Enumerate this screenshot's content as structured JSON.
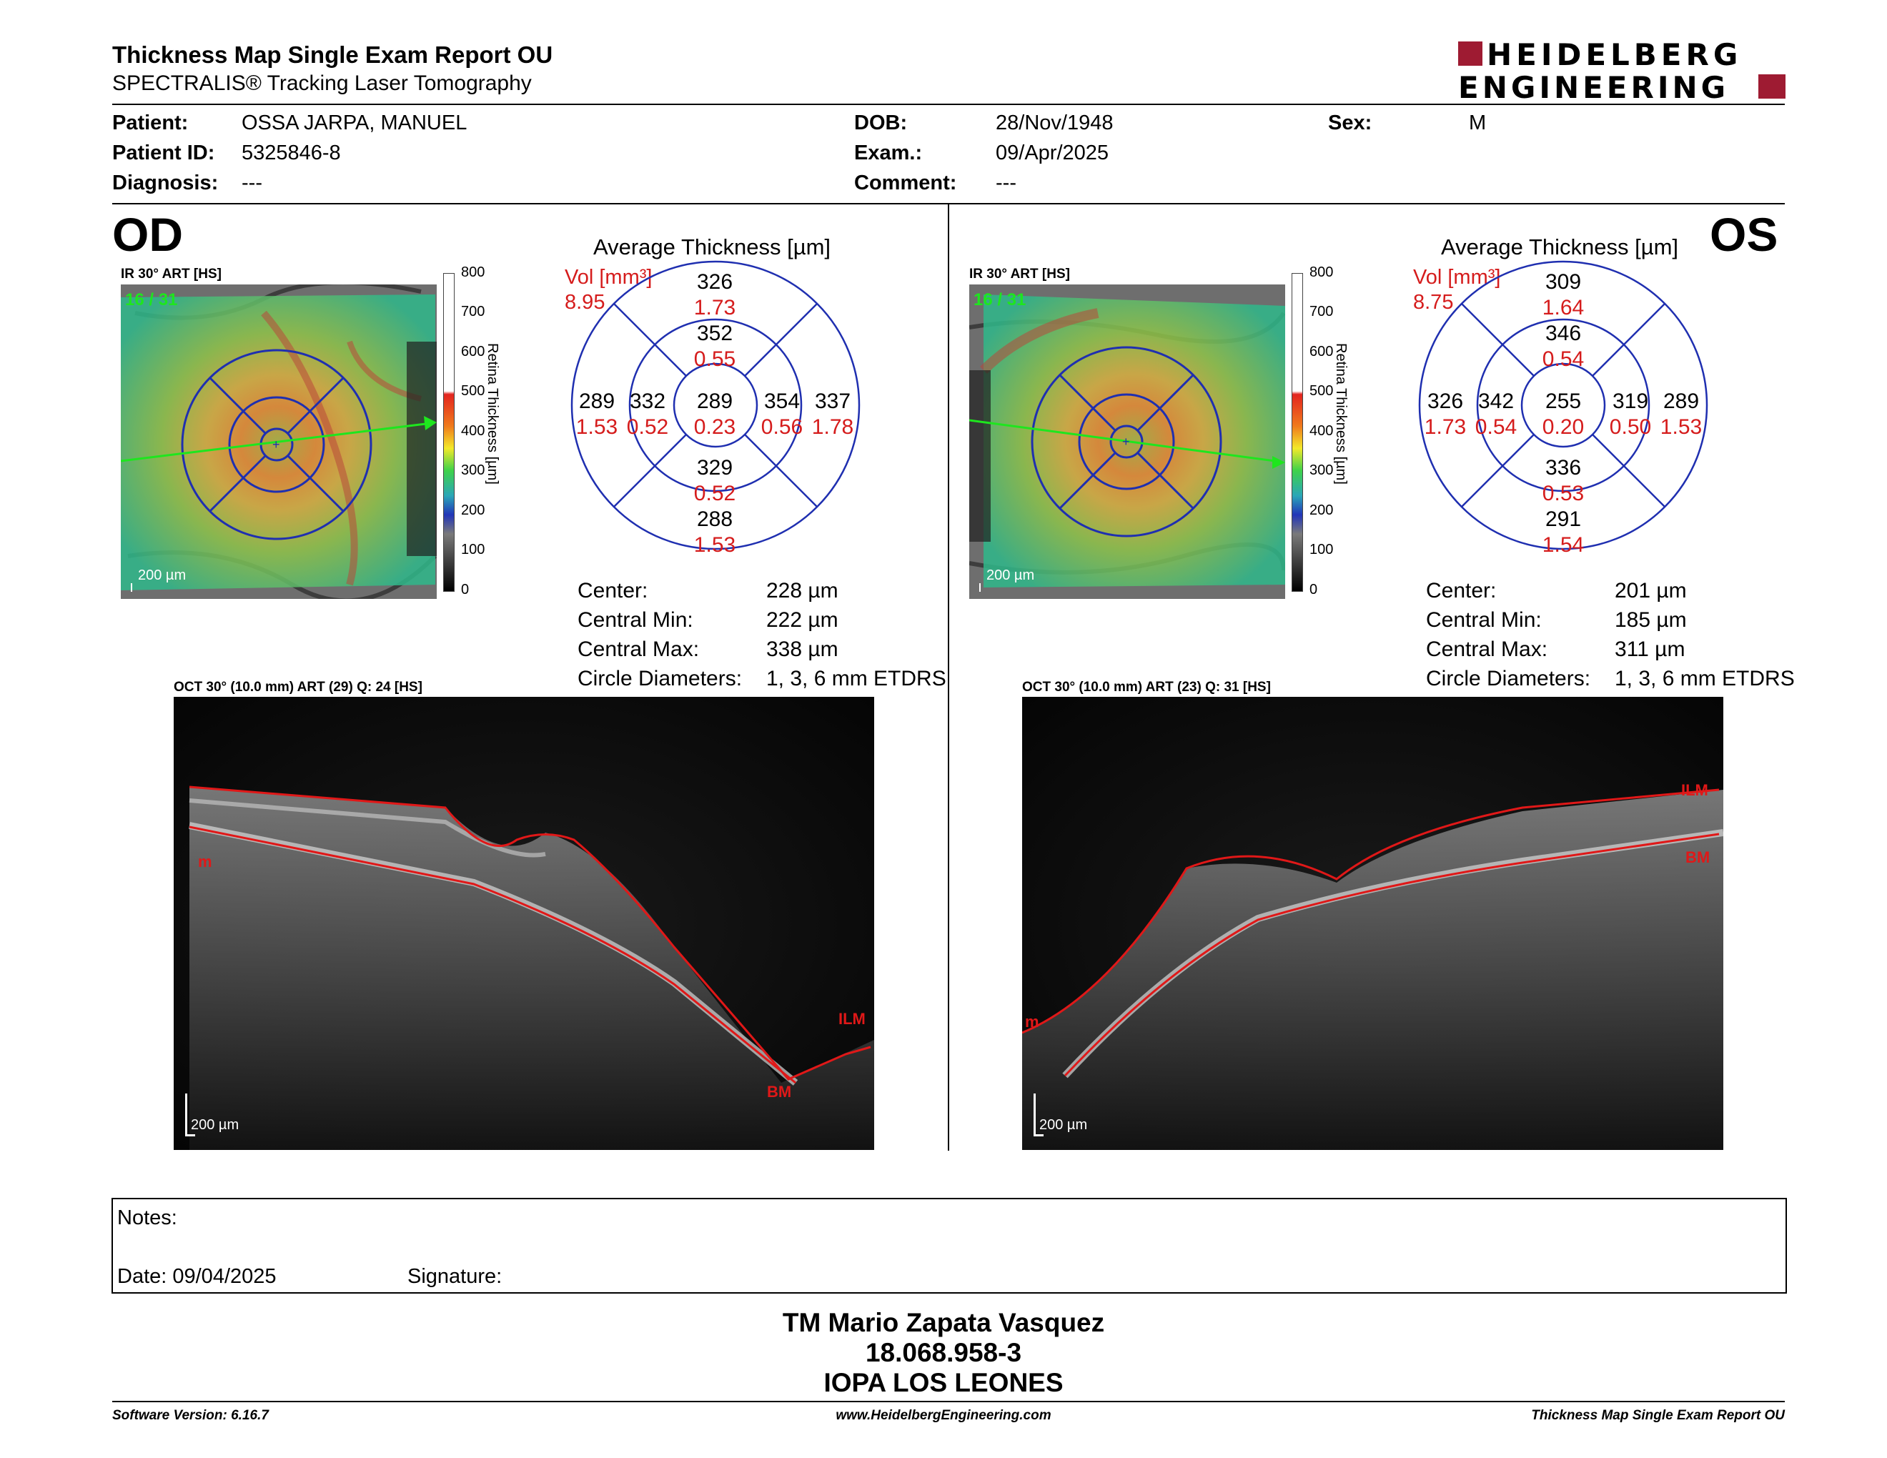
{
  "header": {
    "title": "Thickness Map Single Exam Report OU",
    "subtitle": "SPECTRALIS® Tracking Laser Tomography",
    "logo_line1": "HEIDELBERG",
    "logo_line2": "ENGINEERING"
  },
  "patient": {
    "patient_label": "Patient:",
    "patient_value": "OSSA JARPA, MANUEL",
    "id_label": "Patient ID:",
    "id_value": "5325846-8",
    "diagnosis_label": "Diagnosis:",
    "diagnosis_value": "---",
    "dob_label": "DOB:",
    "dob_value": "28/Nov/1948",
    "exam_label": "Exam.:",
    "exam_value": "09/Apr/2025",
    "comment_label": "Comment:",
    "comment_value": "---",
    "sex_label": "Sex:",
    "sex_value": "M"
  },
  "colorbar": {
    "ticks": [
      "800",
      "700",
      "600",
      "500",
      "400",
      "300",
      "200",
      "100",
      "0"
    ],
    "label": "Retina Thickness [µm]"
  },
  "od": {
    "eye": "OD",
    "ir_label": "IR 30° ART [HS]",
    "frame": "16 / 31",
    "scale": "200 µm",
    "avg_title": "Average Thickness [µm]",
    "vol_label": "Vol [mm³]",
    "vol_value": "8.95",
    "sectors": {
      "outer_top": {
        "t": "326",
        "v": "1.73"
      },
      "inner_top": {
        "t": "352",
        "v": "0.55"
      },
      "outer_left": {
        "t": "289",
        "v": "1.53"
      },
      "inner_left": {
        "t": "332",
        "v": "0.52"
      },
      "center": {
        "t": "289",
        "v": "0.23"
      },
      "inner_right": {
        "t": "354",
        "v": "0.56"
      },
      "outer_right": {
        "t": "337",
        "v": "1.78"
      },
      "inner_bottom": {
        "t": "329",
        "v": "0.52"
      },
      "outer_bottom": {
        "t": "288",
        "v": "1.53"
      }
    },
    "stats": {
      "center_label": "Center:",
      "center_value": "228 µm",
      "min_label": "Central Min:",
      "min_value": "222 µm",
      "max_label": "Central Max:",
      "max_value": "338 µm",
      "circle_label": "Circle Diameters:",
      "circle_value": "1, 3, 6 mm ETDRS"
    },
    "oct_label": "OCT 30° (10.0 mm) ART (29) Q: 24 [HS]",
    "oct_scale": "200 µm",
    "markers": {
      "ilm": "ILM",
      "bm": "BM",
      "m": "m"
    }
  },
  "os": {
    "eye": "OS",
    "ir_label": "IR 30° ART [HS]",
    "frame": "16 / 31",
    "scale": "200 µm",
    "avg_title": "Average Thickness [µm]",
    "vol_label": "Vol [mm³]",
    "vol_value": "8.75",
    "sectors": {
      "outer_top": {
        "t": "309",
        "v": "1.64"
      },
      "inner_top": {
        "t": "346",
        "v": "0.54"
      },
      "outer_left": {
        "t": "326",
        "v": "1.73"
      },
      "inner_left": {
        "t": "342",
        "v": "0.54"
      },
      "center": {
        "t": "255",
        "v": "0.20"
      },
      "inner_right": {
        "t": "319",
        "v": "0.50"
      },
      "outer_right": {
        "t": "289",
        "v": "1.53"
      },
      "inner_bottom": {
        "t": "336",
        "v": "0.53"
      },
      "outer_bottom": {
        "t": "291",
        "v": "1.54"
      }
    },
    "stats": {
      "center_label": "Center:",
      "center_value": "201 µm",
      "min_label": "Central Min:",
      "min_value": "185 µm",
      "max_label": "Central Max:",
      "max_value": "311 µm",
      "circle_label": "Circle Diameters:",
      "circle_value": "1, 3, 6 mm ETDRS"
    },
    "oct_label": "OCT 30° (10.0 mm) ART (23) Q: 31 [HS]",
    "oct_scale": "200 µm",
    "markers": {
      "ilm": "ILM",
      "bm": "BM",
      "m": "m"
    }
  },
  "notes": {
    "notes_label": "Notes:",
    "date_label": "Date: 09/04/2025",
    "signature_label": "Signature:"
  },
  "signature": {
    "name": "TM Mario Zapata Vasquez",
    "rut": "18.068.958-3",
    "center": "IOPA LOS LEONES"
  },
  "footer": {
    "software": "Software Version: 6.16.7",
    "website": "www.HeidelbergEngineering.com",
    "report": "Thickness Map Single Exam Report OU"
  },
  "colors": {
    "red_text": "#d51c1c",
    "brand": "#9e1b32",
    "etdrs_grid": "#1f2fb0",
    "green_line": "#1ee61e",
    "segmentation": "#e01818"
  }
}
